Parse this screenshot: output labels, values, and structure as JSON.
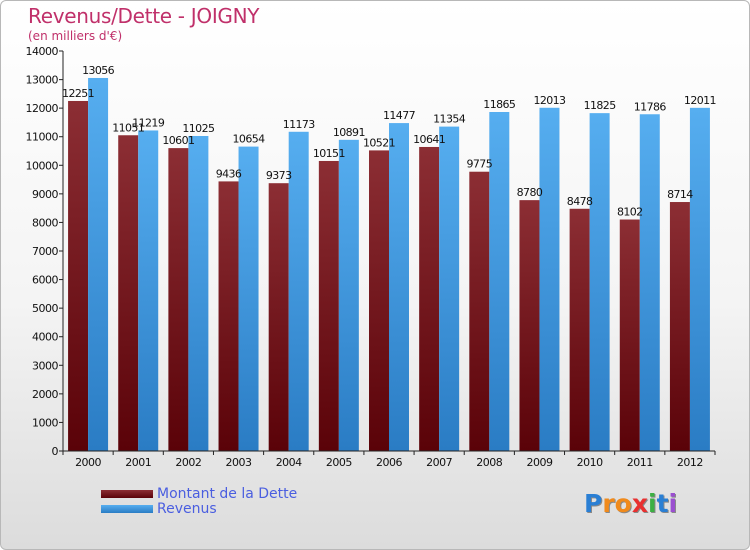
{
  "header": {
    "title": "Revenus/Dette - JOIGNY",
    "subtitle": "(en milliers d'€)"
  },
  "chart_data": {
    "type": "bar",
    "categories": [
      "2000",
      "2001",
      "2002",
      "2003",
      "2004",
      "2005",
      "2006",
      "2007",
      "2008",
      "2009",
      "2010",
      "2011",
      "2012"
    ],
    "series": [
      {
        "name": "Montant de la Dette",
        "color": "#6b0d10",
        "values": [
          12251,
          11051,
          10601,
          9436,
          9373,
          10151,
          10521,
          10641,
          9775,
          8780,
          8478,
          8102,
          8714
        ]
      },
      {
        "name": "Revenus",
        "color": "#3b95dc",
        "values": [
          13056,
          11219,
          11025,
          10654,
          11173,
          10891,
          11477,
          11354,
          11865,
          12013,
          11825,
          11786,
          12011
        ]
      }
    ],
    "data_labels": [
      [
        "12251",
        "11051",
        "10601",
        "9436",
        "9373",
        "10151",
        "10521",
        "10641",
        "9775",
        "8780",
        "8478",
        "8102",
        "8714"
      ],
      [
        "13056",
        "11219",
        "11025",
        "10654",
        "11173",
        "10891",
        "11477",
        "11354",
        "11865",
        "12013",
        "11825",
        "11786",
        "12011"
      ]
    ],
    "yticks": [
      0,
      1000,
      2000,
      3000,
      4000,
      5000,
      6000,
      7000,
      8000,
      9000,
      10000,
      11000,
      12000,
      13000,
      14000
    ],
    "ylim": [
      0,
      14000
    ],
    "grid": false,
    "legend_position": "bottom-left"
  },
  "logo": {
    "letters": [
      "P",
      "r",
      "o",
      "x",
      "i",
      "t",
      "i"
    ],
    "colors": [
      "#2a7fd4",
      "#f08a1c",
      "#f08a1c",
      "#e83030",
      "#3cb043",
      "#2a7fd4",
      "#9b4fd0"
    ]
  }
}
